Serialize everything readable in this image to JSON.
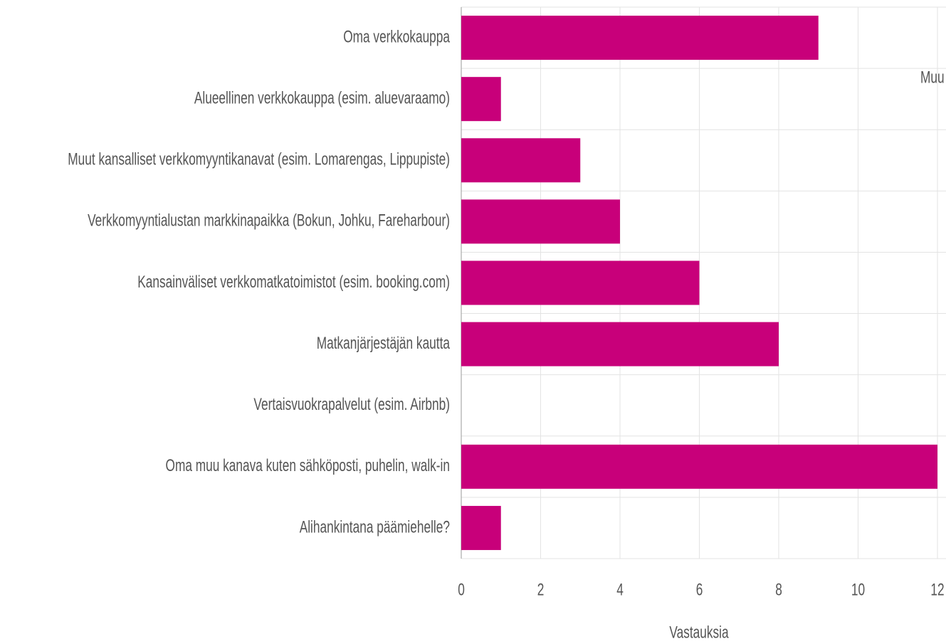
{
  "chart_data": {
    "type": "bar",
    "orientation": "horizontal",
    "x_label": "Vastauksia",
    "categories": [
      "Oma verkkokauppa",
      "Alueellinen verkkokauppa (esim. aluevaraamo)",
      "Muut kansalliset verkkomyyntikanavat (esim. Lomarengas, Lippupiste)",
      "Verkkomyyntialustan markkinapaikka (Bokun, Johku, Fareharbour)",
      "Kansainväliset verkkomatkatoimistot (esim. booking.com)",
      "Matkanjärjestäjän kautta",
      "Vertaisvuokrapalvelut (esim. Airbnb)",
      "Oma muu kanava kuten sähköposti, puhelin, walk-in",
      "Alihankintana päämiehelle?"
    ],
    "series": [
      {
        "name": "Muu",
        "color": "#c8007a",
        "values": [
          9,
          1,
          3,
          4,
          6,
          8,
          0,
          12,
          1
        ]
      }
    ],
    "xlim": [
      0,
      12
    ],
    "xticks": [
      0,
      2,
      4,
      6,
      8,
      10,
      12
    ],
    "grid": true
  }
}
